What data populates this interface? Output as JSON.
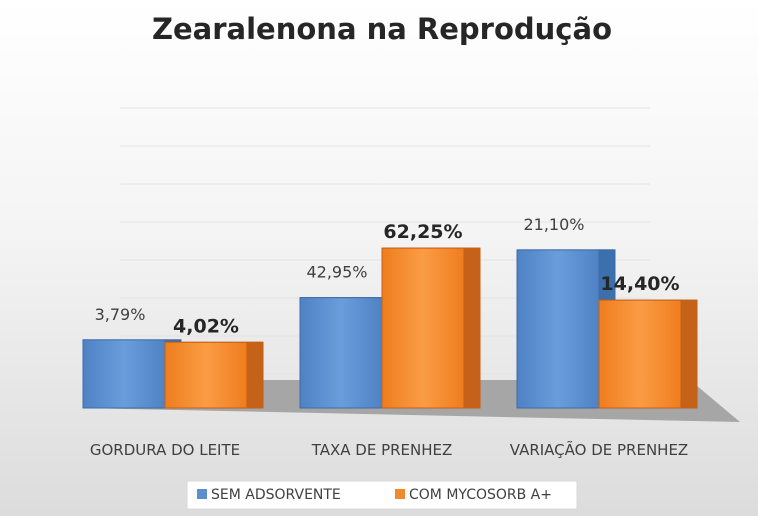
{
  "chart_data": {
    "type": "bar",
    "title": "Zearalenona  na Reprodução",
    "categories": [
      "GORDURA DO LEITE",
      "TAXA DE PRENHEZ",
      "VARIAÇÃO DE PRENHEZ"
    ],
    "series": [
      {
        "name": "SEM ADSORVENTE",
        "values": [
          3.79,
          42.95,
          21.1
        ],
        "labels": [
          "3,79%",
          "42,95%",
          "21,10%"
        ],
        "color": "#5b8fd0"
      },
      {
        "name": "COM MYCOSORB A+",
        "values": [
          4.02,
          62.25,
          14.4
        ],
        "labels": [
          "4,02%",
          "62,25%",
          "14,40%"
        ],
        "color": "#f08a2c"
      }
    ],
    "bar_scales": [
      [
        10,
        11
      ],
      [
        70,
        70
      ],
      [
        24,
        24
      ]
    ],
    "grid": true,
    "legend_position": "bottom",
    "three_d": true
  }
}
